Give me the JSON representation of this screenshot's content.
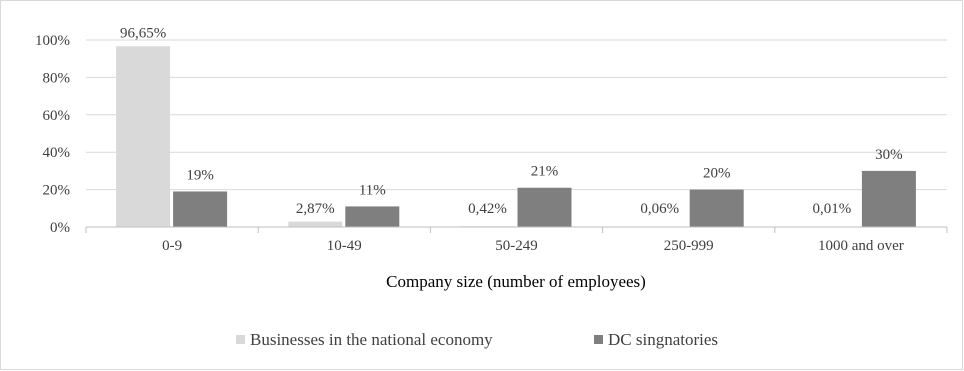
{
  "chart_data": {
    "type": "bar",
    "title": "",
    "xlabel": "Company size (number of employees)",
    "ylabel": "",
    "ylim": [
      0,
      1
    ],
    "yticks": [
      0,
      0.2,
      0.4,
      0.6,
      0.8,
      1.0
    ],
    "ytick_labels": [
      "0%",
      "20%",
      "40%",
      "60%",
      "80%",
      "100%"
    ],
    "categories": [
      "0-9",
      "10-49",
      "50-249",
      "250-999",
      "1000 and over"
    ],
    "series": [
      {
        "name": "Businesses in the national economy",
        "color": "#d9d9d9",
        "values": [
          0.9665,
          0.0287,
          0.0042,
          0.0006,
          0.0001
        ],
        "labels": [
          "96,65%",
          "2,87%",
          "0,42%",
          "0,06%",
          "0,01%"
        ]
      },
      {
        "name": "DC singnatories",
        "color": "#7f7f7f",
        "values": [
          0.19,
          0.11,
          0.21,
          0.2,
          0.3
        ],
        "labels": [
          "19%",
          "11%",
          "21%",
          "20%",
          "30%"
        ]
      }
    ],
    "legend_position": "bottom",
    "grid": true
  }
}
